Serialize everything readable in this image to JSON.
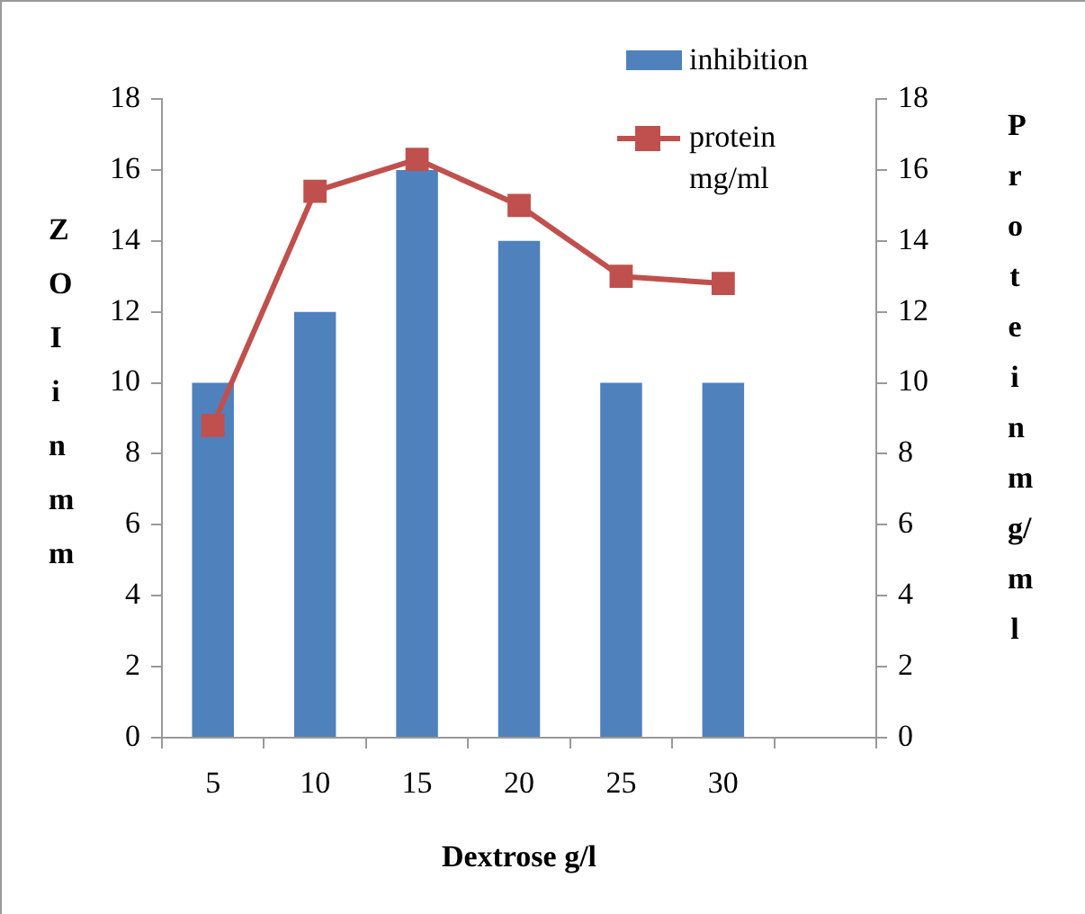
{
  "chart_data": {
    "type": "bar",
    "xlabel": "Dextrose g/l",
    "ylabel": "ZOI in mm",
    "y2label": "Protein mg/ml",
    "categories": [
      "5",
      "10",
      "15",
      "20",
      "25",
      "30",
      null
    ],
    "series": [
      {
        "name": "inhibition",
        "color": "#4f81bd",
        "values": [
          10,
          12,
          16,
          14,
          10,
          10,
          null
        ]
      },
      {
        "name": "protein mg/ml",
        "type": "line",
        "axis": "y2",
        "color": "#c0504d",
        "marker": "square",
        "values": [
          8.8,
          15.4,
          16.3,
          15.0,
          13.0,
          12.8,
          null
        ]
      }
    ],
    "ylim": [
      0,
      18
    ],
    "yticks": [
      0,
      2,
      4,
      6,
      8,
      10,
      12,
      14,
      16,
      18
    ],
    "y2lim": [
      0,
      18
    ],
    "y2ticks": [
      0,
      2,
      4,
      6,
      8,
      10,
      12,
      14,
      16,
      18
    ],
    "grid": false,
    "legend": "top right"
  }
}
